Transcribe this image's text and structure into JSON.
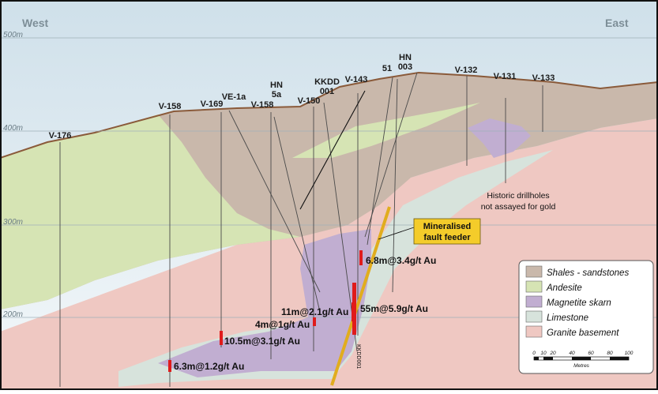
{
  "directions": {
    "west": "West",
    "east": "East"
  },
  "elevations": [
    "500m",
    "400m",
    "300m",
    "200m"
  ],
  "drillholes": [
    {
      "id": "v176",
      "lines": [
        "V-176"
      ]
    },
    {
      "id": "v158a",
      "lines": [
        "V-158"
      ]
    },
    {
      "id": "v169",
      "lines": [
        "V-169"
      ]
    },
    {
      "id": "ve1a",
      "lines": [
        "VE-1a"
      ]
    },
    {
      "id": "v158b",
      "lines": [
        "V-158"
      ]
    },
    {
      "id": "hn5a",
      "lines": [
        "HN",
        "5a"
      ]
    },
    {
      "id": "v150",
      "lines": [
        "V-150"
      ]
    },
    {
      "id": "kkdd001",
      "lines": [
        "KKDD",
        "001"
      ]
    },
    {
      "id": "v143",
      "lines": [
        "V-143"
      ]
    },
    {
      "id": "h51",
      "lines": [
        "51"
      ]
    },
    {
      "id": "hn003",
      "lines": [
        "HN",
        "003"
      ]
    },
    {
      "id": "v132",
      "lines": [
        "V-132"
      ]
    },
    {
      "id": "v131",
      "lines": [
        "V-131"
      ]
    },
    {
      "id": "v133",
      "lines": [
        "V-133"
      ]
    }
  ],
  "intercepts": [
    "6.8m@3.4g/t Au",
    "55m@5.9g/t Au",
    "11m@2.1g/t Au",
    "4m@1g/t Au",
    "10.5m@3.1g/t Au",
    "6.3m@1.2g/t Au"
  ],
  "callout": {
    "lines": [
      "Mineralised",
      "fault feeder"
    ]
  },
  "historic_note": {
    "lines": [
      "Historic drillholes",
      "not assayed for gold"
    ]
  },
  "downhole_label": "KKDD001",
  "legend": {
    "items": [
      {
        "label": "Shales - sandstones",
        "color": "#c9b8ab"
      },
      {
        "label": "Andesite",
        "color": "#d6e4b4"
      },
      {
        "label": "Magnetite skarn",
        "color": "#c1aed1"
      },
      {
        "label": "Limestone",
        "color": "#d7e3dc"
      },
      {
        "label": "Granite basement",
        "color": "#efc8c2"
      }
    ],
    "scale_ticks": [
      "0",
      "10",
      "20",
      "40",
      "60",
      "80",
      "100"
    ],
    "scale_unit": "Metres"
  },
  "colors": {
    "shale": "#c9b8ab",
    "andesite": "#d6e4b4",
    "skarn": "#c1aed1",
    "limestone": "#d7e3dc",
    "granite": "#efc8c2",
    "fault": "#e1ad1e",
    "intercept": "#e01b1b",
    "topography": "#8a5a3a"
  }
}
